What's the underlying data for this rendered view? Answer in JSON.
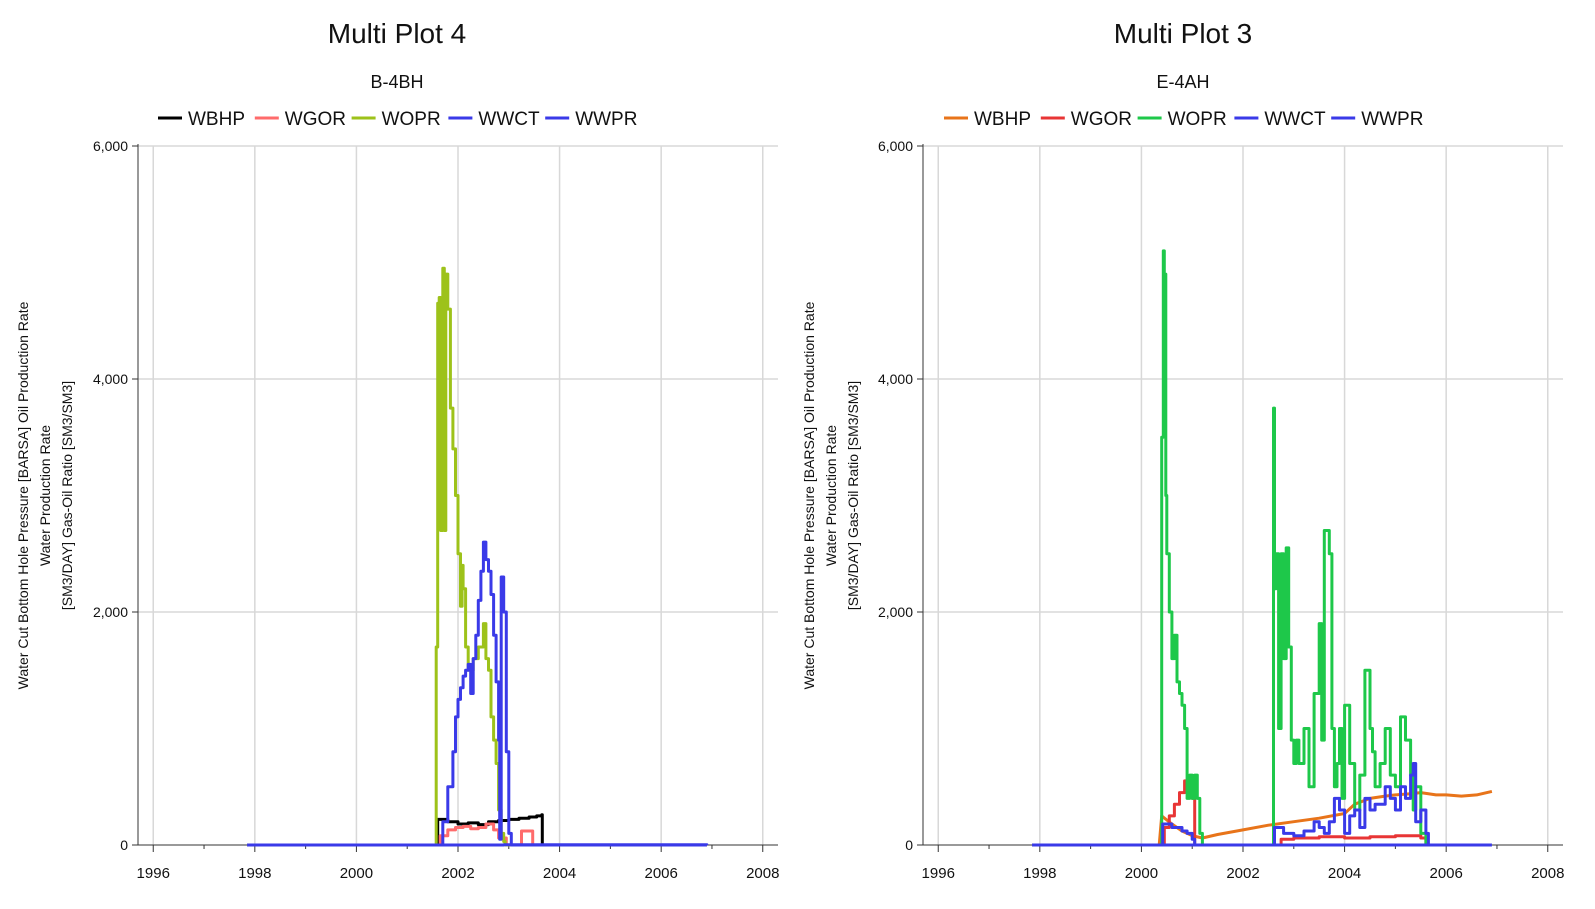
{
  "chart_data": [
    {
      "type": "line",
      "title": "Multi Plot 4",
      "subtitle": "B-4BH",
      "ylabel_lines": [
        "Water Cut Bottom Hole Pressure [BARSA] Oil Production Rate",
        "Water Production Rate",
        "[SM3/DAY] Gas-Oil Ratio [SM3/SM3]"
      ],
      "xlim": [
        1995.7,
        2008.3
      ],
      "ylim": [
        0,
        6000
      ],
      "xticks": [
        1996,
        1998,
        2000,
        2002,
        2004,
        2006,
        2008
      ],
      "xtick_labels": [
        "1996",
        "1998",
        "2000",
        "2002",
        "2004",
        "2006",
        "2008"
      ],
      "yticks": [
        0,
        2000,
        4000,
        6000
      ],
      "ytick_labels": [
        "0",
        "2,000",
        "4,000",
        "6,000"
      ],
      "grid": true,
      "legend_position": "top",
      "series": [
        {
          "name": "WBHP",
          "color": "#000000",
          "step": true,
          "x": [
            1997.85,
            2001.55,
            2001.6,
            2001.8,
            2002.0,
            2002.2,
            2002.4,
            2002.6,
            2002.8,
            2003.0,
            2003.2,
            2003.4,
            2003.55,
            2003.65,
            2003.66,
            2006.9
          ],
          "y": [
            0,
            0,
            220,
            200,
            180,
            190,
            175,
            200,
            210,
            220,
            230,
            240,
            250,
            260,
            0,
            0
          ]
        },
        {
          "name": "WGOR",
          "color": "#ff6b6b",
          "step": true,
          "x": [
            1997.85,
            2001.55,
            2001.65,
            2001.8,
            2001.95,
            2002.1,
            2002.25,
            2002.4,
            2002.55,
            2002.7,
            2002.8,
            2002.95,
            2003.1,
            2003.25,
            2003.45,
            2003.47,
            2006.9
          ],
          "y": [
            0,
            0,
            80,
            130,
            150,
            160,
            140,
            150,
            180,
            130,
            60,
            0,
            0,
            120,
            120,
            0,
            0
          ]
        },
        {
          "name": "WOPR",
          "color": "#9dc21a",
          "step": true,
          "x": [
            1997.85,
            2001.55,
            2001.57,
            2001.6,
            2001.63,
            2001.66,
            2001.7,
            2001.73,
            2001.76,
            2001.8,
            2001.85,
            2001.9,
            2001.95,
            2002.0,
            2002.05,
            2002.08,
            2002.1,
            2002.15,
            2002.2,
            2002.3,
            2002.4,
            2002.5,
            2002.55,
            2002.6,
            2002.65,
            2002.7,
            2002.75,
            2002.8,
            2002.85,
            2002.9,
            2002.93,
            2006.9
          ],
          "y": [
            0,
            0,
            1700,
            4650,
            4700,
            2700,
            4950,
            2700,
            4900,
            4600,
            3750,
            3400,
            3000,
            2500,
            2050,
            2400,
            2200,
            1700,
            1500,
            1600,
            1700,
            1900,
            1600,
            1500,
            1100,
            900,
            700,
            300,
            100,
            30,
            0,
            0
          ]
        },
        {
          "name": "WWCT",
          "color": "#3a3ae8",
          "step": true,
          "x": [
            1997.85,
            2002.88,
            2002.9,
            2006.9
          ],
          "y": [
            0,
            0,
            2,
            0
          ]
        },
        {
          "name": "WWPR",
          "color": "#3a3ae8",
          "step": true,
          "x": [
            1997.85,
            2001.6,
            2001.7,
            2001.8,
            2001.9,
            2001.95,
            2002.0,
            2002.05,
            2002.1,
            2002.15,
            2002.2,
            2002.25,
            2002.3,
            2002.35,
            2002.4,
            2002.45,
            2002.5,
            2002.55,
            2002.6,
            2002.65,
            2002.7,
            2002.75,
            2002.8,
            2002.82,
            2002.85,
            2002.9,
            2002.95,
            2003.0,
            2003.05,
            2006.9
          ],
          "y": [
            0,
            0,
            200,
            500,
            800,
            1100,
            1250,
            1350,
            1450,
            1500,
            1550,
            1300,
            1600,
            1800,
            2100,
            2350,
            2600,
            2450,
            2350,
            2150,
            1800,
            1400,
            900,
            50,
            2300,
            2000,
            800,
            100,
            0,
            0
          ]
        }
      ]
    },
    {
      "type": "line",
      "title": "Multi Plot 3",
      "subtitle": "E-4AH",
      "ylabel_lines": [
        "Water Cut Bottom Hole Pressure [BARSA] Oil Production Rate",
        "Water Production Rate",
        "[SM3/DAY] Gas-Oil Ratio [SM3/SM3]"
      ],
      "xlim": [
        1995.7,
        2008.3
      ],
      "ylim": [
        0,
        6000
      ],
      "xticks": [
        1996,
        1998,
        2000,
        2002,
        2004,
        2006,
        2008
      ],
      "xtick_labels": [
        "1996",
        "1998",
        "2000",
        "2002",
        "2004",
        "2006",
        "2008"
      ],
      "yticks": [
        0,
        2000,
        4000,
        6000
      ],
      "ytick_labels": [
        "0",
        "2,000",
        "4,000",
        "6,000"
      ],
      "grid": true,
      "legend_position": "top",
      "series": [
        {
          "name": "WBHP",
          "color": "#e8741a",
          "step": false,
          "x": [
            1997.85,
            2000.35,
            2000.4,
            2000.6,
            2000.8,
            2001.0,
            2001.2,
            2001.5,
            2002.0,
            2002.5,
            2003.0,
            2003.5,
            2004.0,
            2004.2,
            2004.5,
            2004.8,
            2005.0,
            2005.3,
            2005.5,
            2005.8,
            2006.0,
            2006.3,
            2006.6,
            2006.9
          ],
          "y": [
            0,
            0,
            250,
            180,
            120,
            80,
            60,
            90,
            130,
            170,
            200,
            230,
            270,
            350,
            400,
            420,
            430,
            440,
            450,
            430,
            430,
            420,
            430,
            460
          ]
        },
        {
          "name": "WGOR",
          "color": "#e83535",
          "step": true,
          "x": [
            1997.85,
            2000.38,
            2000.45,
            2000.55,
            2000.65,
            2000.75,
            2000.85,
            2000.95,
            2001.0,
            2001.05,
            2002.6,
            2002.75,
            2003.0,
            2003.5,
            2004.0,
            2004.5,
            2005.0,
            2005.5,
            2005.6
          ],
          "y": [
            0,
            0,
            150,
            250,
            350,
            450,
            550,
            560,
            400,
            0,
            0,
            50,
            60,
            70,
            60,
            70,
            80,
            60,
            0
          ]
        },
        {
          "name": "WOPR",
          "color": "#1ec84a",
          "step": true,
          "x": [
            1997.85,
            2000.35,
            2000.4,
            2000.43,
            2000.45,
            2000.48,
            2000.5,
            2000.55,
            2000.6,
            2000.65,
            2000.7,
            2000.75,
            2000.8,
            2000.85,
            2000.9,
            2000.95,
            2001.0,
            2001.05,
            2001.1,
            2001.15,
            2001.2,
            2001.25,
            2001.3,
            2002.6,
            2002.62,
            2002.65,
            2002.7,
            2002.75,
            2002.8,
            2002.85,
            2002.9,
            2002.95,
            2003.0,
            2003.05,
            2003.1,
            2003.2,
            2003.3,
            2003.4,
            2003.5,
            2003.55,
            2003.6,
            2003.7,
            2003.75,
            2003.8,
            2003.85,
            2003.9,
            2003.95,
            2004.0,
            2004.1,
            2004.2,
            2004.3,
            2004.4,
            2004.5,
            2004.55,
            2004.6,
            2004.7,
            2004.8,
            2004.9,
            2005.0,
            2005.1,
            2005.2,
            2005.3,
            2005.35,
            2005.4,
            2005.5,
            2005.6
          ],
          "y": [
            0,
            0,
            3500,
            5100,
            4900,
            3000,
            2500,
            2000,
            1600,
            1800,
            1400,
            1300,
            1200,
            1000,
            400,
            600,
            400,
            600,
            400,
            100,
            0,
            0,
            0,
            3750,
            2200,
            2500,
            1000,
            2500,
            1600,
            2550,
            1700,
            900,
            700,
            900,
            700,
            1000,
            500,
            1300,
            1900,
            900,
            2700,
            2500,
            1000,
            500,
            700,
            1000,
            400,
            1200,
            700,
            300,
            600,
            1500,
            1000,
            800,
            500,
            700,
            1000,
            600,
            500,
            1100,
            900,
            600,
            300,
            500,
            100,
            0
          ]
        },
        {
          "name": "WWCT",
          "color": "#3a3ae8",
          "step": true,
          "x": [
            1997.85,
            2006.9
          ],
          "y": [
            0,
            0
          ]
        },
        {
          "name": "WWPR",
          "color": "#3a3ae8",
          "step": true,
          "x": [
            1997.85,
            2000.38,
            2000.42,
            2000.6,
            2000.8,
            2000.9,
            2001.0,
            2001.05,
            2002.6,
            2002.62,
            2002.8,
            2003.0,
            2003.2,
            2003.4,
            2003.5,
            2003.6,
            2003.7,
            2003.8,
            2003.9,
            2004.0,
            2004.1,
            2004.2,
            2004.3,
            2004.4,
            2004.5,
            2004.6,
            2004.7,
            2004.8,
            2004.9,
            2005.0,
            2005.1,
            2005.2,
            2005.3,
            2005.35,
            2005.4,
            2005.5,
            2005.6,
            2005.65
          ],
          "y": [
            0,
            0,
            180,
            150,
            120,
            100,
            50,
            0,
            0,
            150,
            100,
            80,
            120,
            200,
            150,
            100,
            200,
            400,
            300,
            100,
            250,
            300,
            150,
            400,
            300,
            350,
            350,
            500,
            400,
            300,
            500,
            400,
            600,
            700,
            200,
            300,
            100,
            0
          ]
        }
      ]
    }
  ]
}
